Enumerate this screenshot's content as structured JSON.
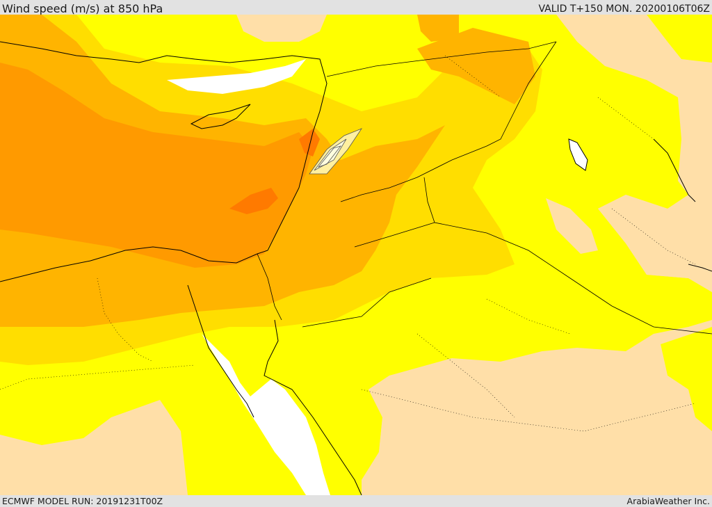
{
  "header": {
    "title": "Wind speed (m/s) at 850 hPa",
    "valid": "VALID T+150 MON. 20200106T06Z"
  },
  "footer": {
    "model_run": "ECMWF MODEL RUN: 20191231T00Z",
    "credit": "ArabiaWeather Inc."
  },
  "map": {
    "field": "wind speed",
    "level": "850 hPa",
    "units": "m/s",
    "fill_colors": {
      "calm": "#ffffff",
      "low": "#ffdfa8",
      "moderate": "#ffff00",
      "fresh": "#ffde00",
      "strong": "#ffb400",
      "very_strong": "#ff9a00",
      "severe": "#ff7a00"
    },
    "line_colors": {
      "coastline": "#000000",
      "border": "#000000",
      "contour": "#555555"
    }
  }
}
